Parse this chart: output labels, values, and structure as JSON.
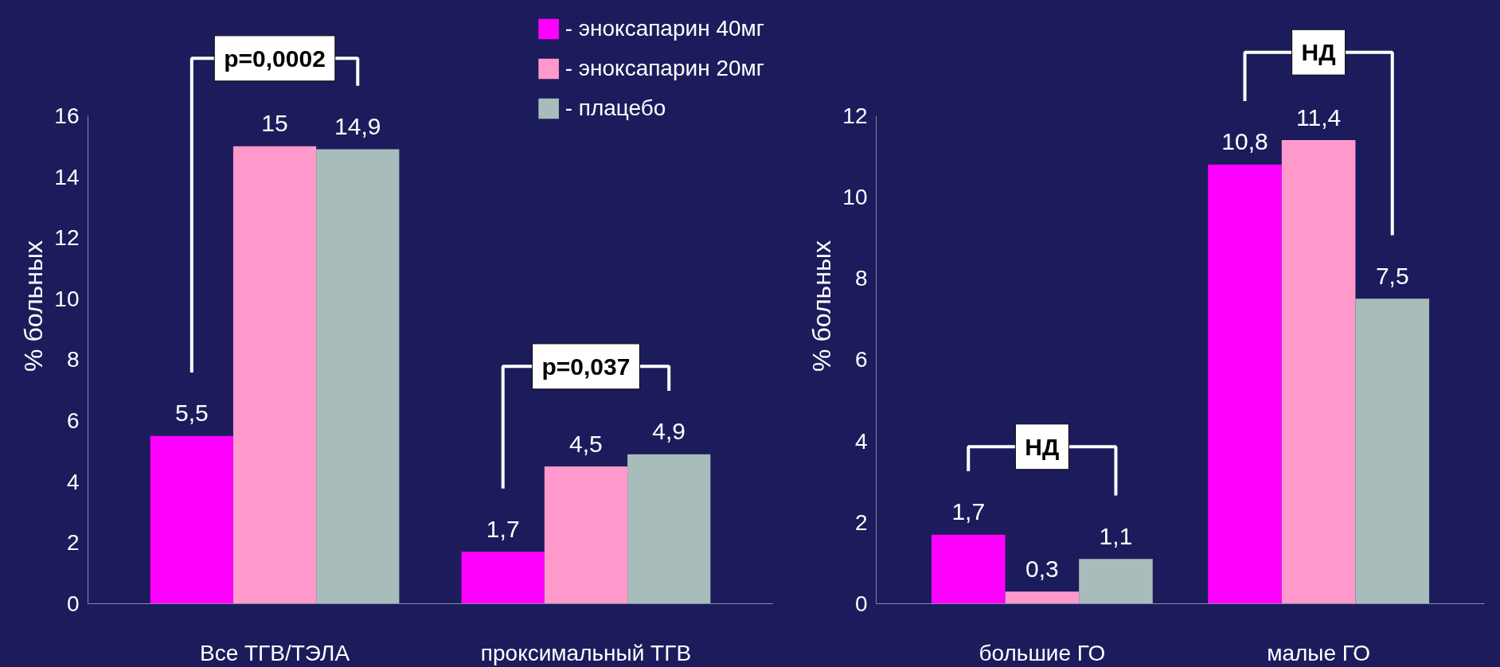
{
  "chart_data": [
    {
      "type": "bar",
      "categories": [
        "Все ТГВ/ТЭЛА",
        "проксимальный ТГВ"
      ],
      "ylabel": "% больных",
      "ylim": [
        0,
        16
      ],
      "yticks": [
        0,
        2,
        4,
        6,
        8,
        10,
        12,
        14,
        16
      ],
      "grid": false,
      "legend": "top right",
      "series": [
        {
          "name": "- эноксапарин 40мг",
          "color": "#ff00ff",
          "values": [
            5.5,
            1.7
          ],
          "value_labels": [
            "5,5",
            "1,7"
          ]
        },
        {
          "name": "- эноксапарин 20мг",
          "color": "#ff99cc",
          "values": [
            15,
            4.5
          ],
          "value_labels": [
            "15",
            "4,5"
          ]
        },
        {
          "name": "- плацебо",
          "color": "#a8bcbc",
          "values": [
            14.9,
            4.9
          ],
          "value_labels": [
            "14,9",
            "4,9"
          ]
        }
      ],
      "annotations": [
        "p=0,0002",
        "p=0,037"
      ]
    },
    {
      "type": "bar",
      "categories": [
        "большие ГО",
        "малые ГО"
      ],
      "ylabel": "% больных",
      "ylim": [
        0,
        12
      ],
      "yticks": [
        0,
        2,
        4,
        6,
        8,
        10,
        12
      ],
      "grid": false,
      "series": [
        {
          "color": "#ff00ff",
          "values": [
            1.7,
            10.8
          ],
          "value_labels": [
            "1,7",
            "10,8"
          ]
        },
        {
          "color": "#ff99cc",
          "values": [
            0.3,
            11.4
          ],
          "value_labels": [
            "0,3",
            "11,4"
          ]
        },
        {
          "color": "#a8bcbc",
          "values": [
            1.1,
            7.5
          ],
          "value_labels": [
            "1,1",
            "7,5"
          ]
        }
      ],
      "annotations": [
        "НД",
        "НД"
      ]
    }
  ]
}
